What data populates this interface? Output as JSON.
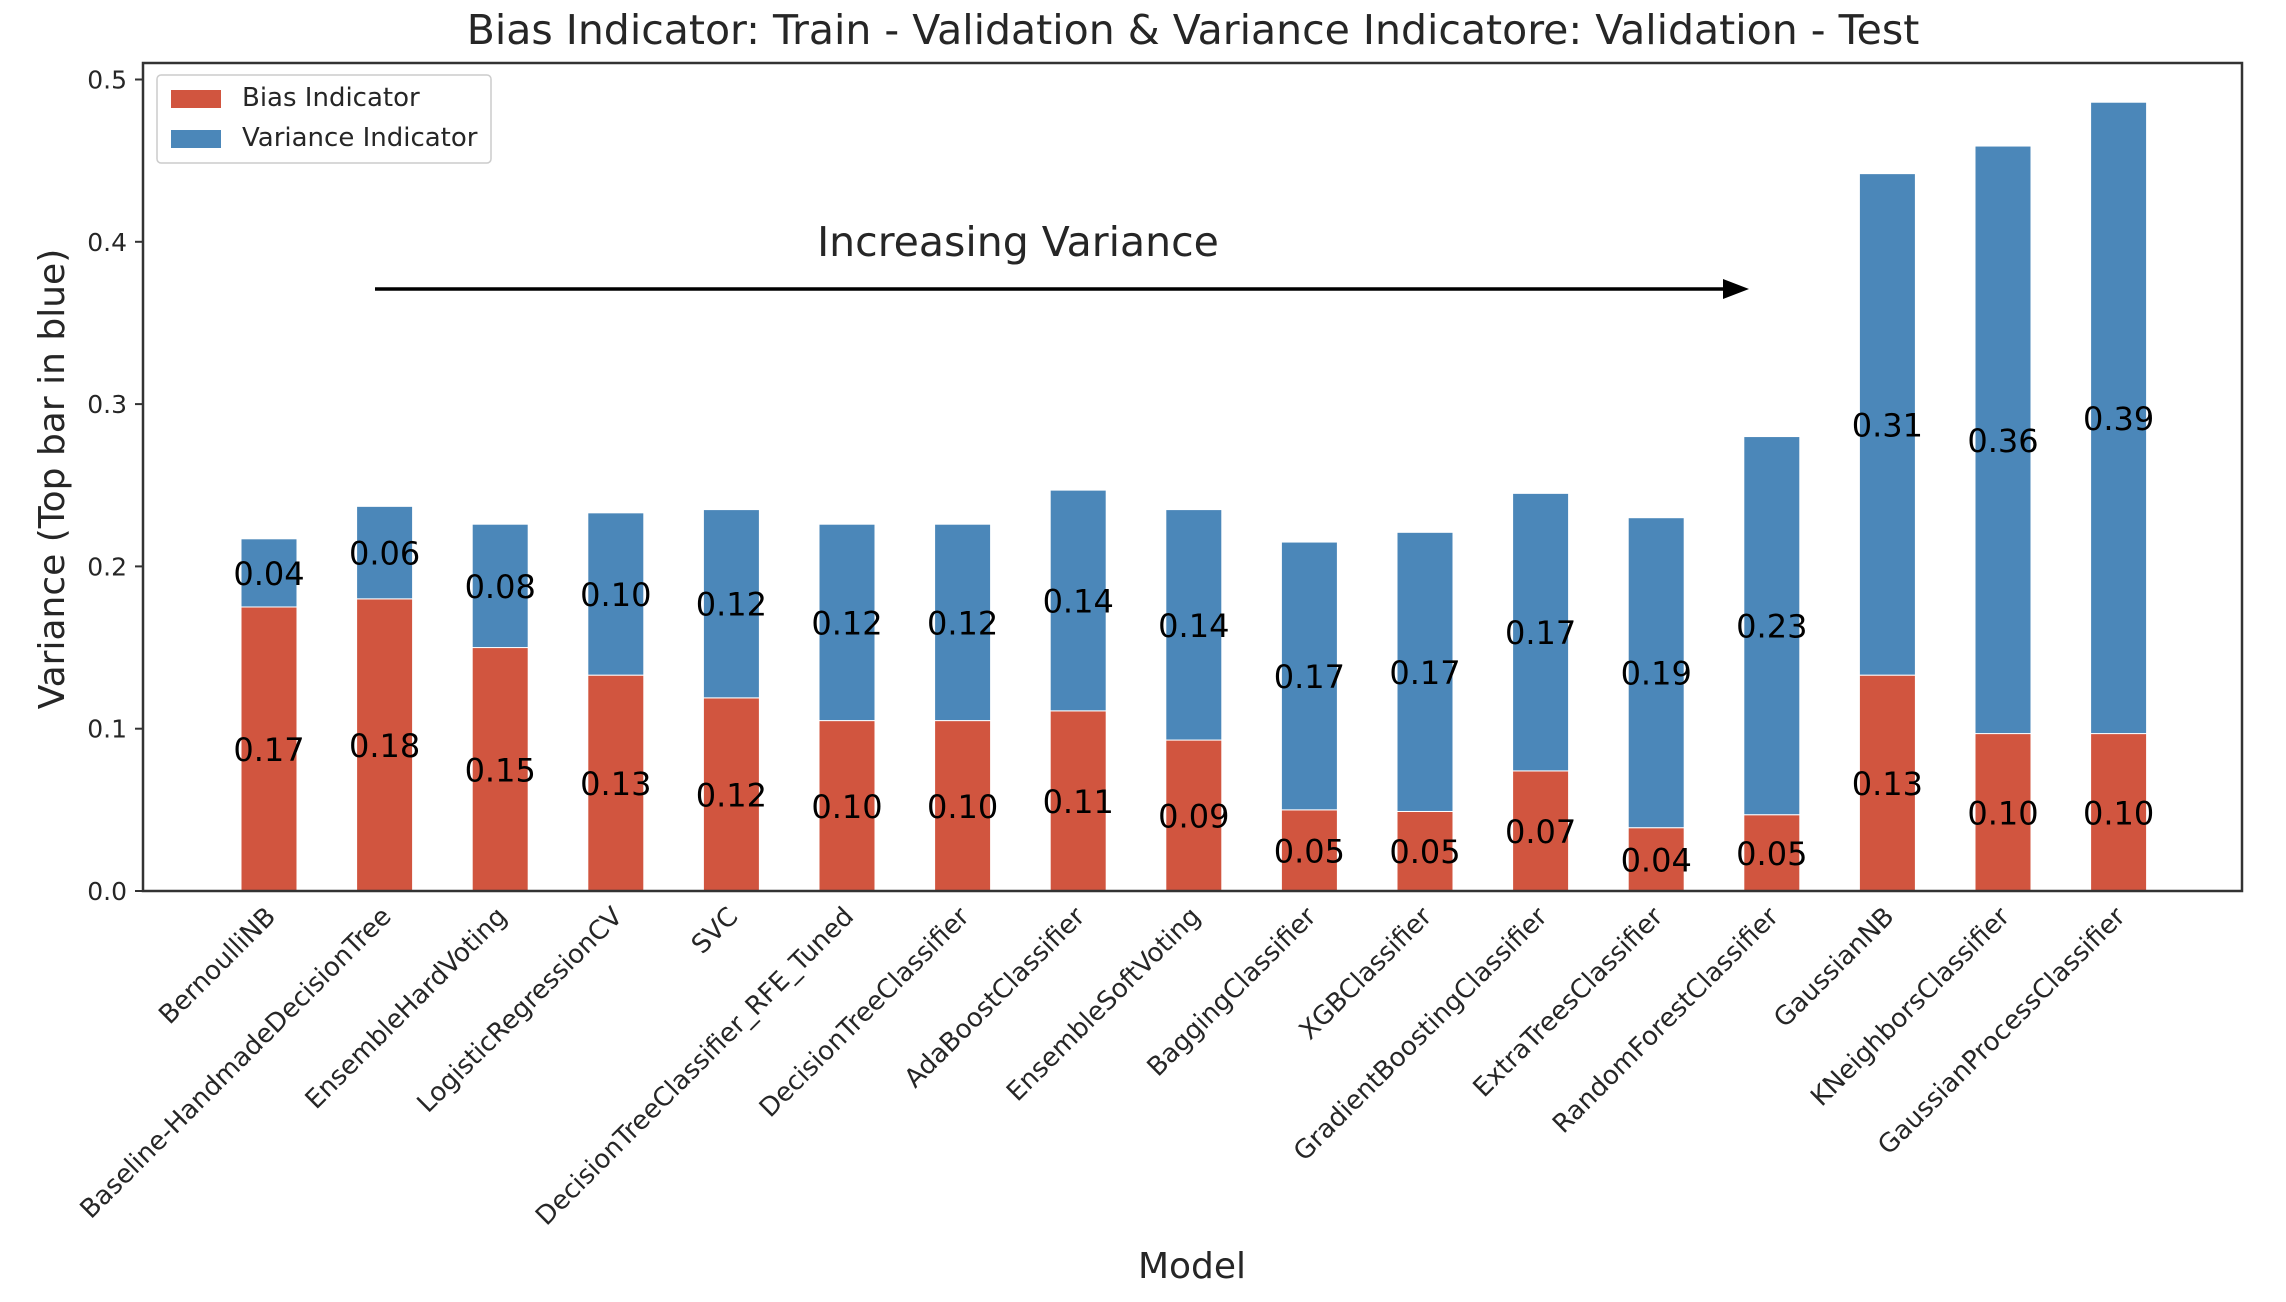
{
  "chart_data": {
    "type": "bar",
    "stacked": true,
    "title": "Bias Indicator: Train - Validation & Variance Indicatore: Validation - Test",
    "xlabel": "Model",
    "ylabel": "Variance (Top bar in blue)",
    "ylim": [
      0,
      0.51
    ],
    "yticks": [
      "0.0",
      "0.1",
      "0.2",
      "0.3",
      "0.4",
      "0.5"
    ],
    "grid": false,
    "legend_position": "top-left",
    "annotation": "Increasing Variance",
    "categories": [
      "BernoulliNB",
      "Baseline-HandmadeDecisionTree",
      "EnsembleHardVoting",
      "LogisticRegressionCV",
      "SVC",
      "DecisionTreeClassifier_RFE_Tuned",
      "DecisionTreeClassifier",
      "AdaBoostClassifier",
      "EnsembleSoftVoting",
      "BaggingClassifier",
      "XGBClassifier",
      "GradientBoostingClassifier",
      "ExtraTreesClassifier",
      "RandomForestClassifier",
      "GaussianNB",
      "KNeighborsClassifier",
      "GaussianProcessClassifier"
    ],
    "series": [
      {
        "name": "Bias Indicator",
        "color": "#d1553f",
        "values": [
          0.175,
          0.18,
          0.15,
          0.133,
          0.119,
          0.105,
          0.105,
          0.111,
          0.093,
          0.05,
          0.049,
          0.074,
          0.039,
          0.047,
          0.133,
          0.097,
          0.097
        ],
        "labels": [
          "0.17",
          "0.18",
          "0.15",
          "0.13",
          "0.12",
          "0.10",
          "0.10",
          "0.11",
          "0.09",
          "0.05",
          "0.05",
          "0.07",
          "0.04",
          "0.05",
          "0.13",
          "0.10",
          "0.10"
        ]
      },
      {
        "name": "Variance Indicator",
        "color": "#4b87b9",
        "values": [
          0.042,
          0.057,
          0.076,
          0.1,
          0.116,
          0.121,
          0.121,
          0.136,
          0.142,
          0.165,
          0.172,
          0.171,
          0.191,
          0.233,
          0.309,
          0.362,
          0.389
        ],
        "labels": [
          "0.04",
          "0.06",
          "0.08",
          "0.10",
          "0.12",
          "0.12",
          "0.12",
          "0.14",
          "0.14",
          "0.17",
          "0.17",
          "0.17",
          "0.19",
          "0.23",
          "0.31",
          "0.36",
          "0.39"
        ]
      }
    ]
  }
}
